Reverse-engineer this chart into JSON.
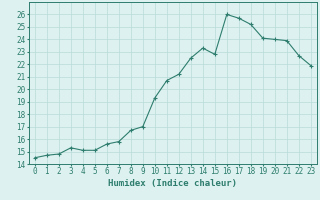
{
  "x": [
    0,
    1,
    2,
    3,
    4,
    5,
    6,
    7,
    8,
    9,
    10,
    11,
    12,
    13,
    14,
    15,
    16,
    17,
    18,
    19,
    20,
    21,
    22,
    23
  ],
  "y": [
    14.5,
    14.7,
    14.8,
    15.3,
    15.1,
    15.1,
    15.6,
    15.8,
    16.7,
    17.0,
    19.3,
    20.7,
    21.2,
    22.5,
    23.3,
    22.8,
    26.0,
    25.7,
    25.2,
    24.1,
    24.0,
    23.9,
    22.7,
    21.9
  ],
  "xlabel": "Humidex (Indice chaleur)",
  "xlim": [
    -0.5,
    23.5
  ],
  "ylim": [
    14,
    27
  ],
  "yticks": [
    14,
    15,
    16,
    17,
    18,
    19,
    20,
    21,
    22,
    23,
    24,
    25,
    26
  ],
  "xticks": [
    0,
    1,
    2,
    3,
    4,
    5,
    6,
    7,
    8,
    9,
    10,
    11,
    12,
    13,
    14,
    15,
    16,
    17,
    18,
    19,
    20,
    21,
    22,
    23
  ],
  "line_color": "#2e7d6e",
  "bg_color": "#ddf2f0",
  "grid_color": "#b8dbd8",
  "tick_fontsize": 5.5,
  "label_fontsize": 6.5
}
